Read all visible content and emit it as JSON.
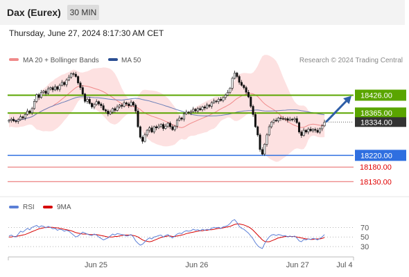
{
  "header": {
    "title": "Dax (Eurex)",
    "interval": "30 MIN"
  },
  "timestamp": "Thursday, June 27, 2024 8:17:30 AM CET",
  "legend": [
    {
      "label": "MA 20 + Bollinger Bands",
      "color": "#f08a8a"
    },
    {
      "label": "MA 50",
      "color": "#2b4f93"
    }
  ],
  "credit": "Research © 2024 Trading Central",
  "rsi_legend": [
    {
      "label": "RSI",
      "color": "#5b7fd6"
    },
    {
      "label": "9MA",
      "color": "#d60000"
    }
  ],
  "chart_data": {
    "type": "candlestick",
    "price_ylim": [
      18088,
      18522
    ],
    "x_range": [
      0,
      500
    ],
    "x_ticks": [
      {
        "x": 127,
        "label": "Jun 25"
      },
      {
        "x": 273,
        "label": "Jun 26"
      },
      {
        "x": 419,
        "label": "Jun 27"
      },
      {
        "x": 487,
        "label": "Jul 4"
      }
    ],
    "levels": [
      {
        "label": "18426.00",
        "value": 18426,
        "kind": "resistance",
        "color": "#5aa500"
      },
      {
        "label": "18365.00",
        "value": 18365,
        "kind": "resistance",
        "color": "#5aa500"
      },
      {
        "label": "18334.00",
        "value": 18334,
        "kind": "last",
        "color": "#333333"
      },
      {
        "label": "18220.00",
        "value": 18220,
        "kind": "pivot",
        "color": "#2f6fe0"
      },
      {
        "label": "18180.00",
        "value": 18180,
        "kind": "support",
        "color": "#e23b3b"
      },
      {
        "label": "18130.00",
        "value": 18130,
        "kind": "support",
        "color": "#e23b3b"
      }
    ],
    "forecast_arrow": {
      "from": [
        460,
        18334
      ],
      "to": [
        497,
        18424
      ]
    },
    "candles": {
      "close": [
        18340,
        18344,
        18338,
        18336,
        18342,
        18352,
        18348,
        18360,
        18372,
        18366,
        18380,
        18405,
        18428,
        18418,
        18436,
        18440,
        18432,
        18448,
        18452,
        18444,
        18455,
        18446,
        18460,
        18470,
        18462,
        18478,
        18488,
        18500,
        18498,
        18490,
        18468,
        18452,
        18430,
        18405,
        18412,
        18398,
        18386,
        18394,
        18404,
        18396,
        18390,
        18376,
        18372,
        18362,
        18368,
        18380,
        18374,
        18386,
        18392,
        18388,
        18400,
        18396,
        18390,
        18402,
        18392,
        18372,
        18318,
        18282,
        18268,
        18290,
        18306,
        18314,
        18300,
        18318,
        18314,
        18320,
        18326,
        18312,
        18320,
        18330,
        18318,
        18308,
        18320,
        18340,
        18348,
        18344,
        18362,
        18368,
        18366,
        18370,
        18378,
        18372,
        18380,
        18376,
        18386,
        18382,
        18392,
        18388,
        18400,
        18406,
        18404,
        18412,
        18408,
        18418,
        18426,
        18436,
        18450,
        18484,
        18502,
        18490,
        18470,
        18460,
        18452,
        18436,
        18420,
        18388,
        18360,
        18318,
        18290,
        18240,
        18224,
        18258,
        18290,
        18318,
        18334,
        18340,
        18338,
        18348,
        18346,
        18344,
        18346,
        18340,
        18344,
        18342,
        18346,
        18332,
        18300,
        18288,
        18306,
        18300,
        18310,
        18304,
        18309,
        18306,
        18299,
        18311,
        18321,
        18334
      ],
      "rsi": [
        52,
        54,
        51,
        50,
        56,
        62,
        60,
        64,
        68,
        65,
        70,
        72,
        74,
        70,
        73,
        72,
        69,
        72,
        70,
        67,
        68,
        64,
        66,
        65,
        62,
        64,
        62,
        58,
        54,
        50,
        52,
        56,
        60,
        58,
        56,
        54,
        53,
        56,
        54,
        50,
        47,
        44,
        46,
        48,
        52,
        56,
        54,
        57,
        56,
        55,
        54,
        52,
        53,
        55,
        50,
        42,
        37,
        33,
        35,
        40,
        45,
        48,
        46,
        50,
        51,
        53,
        54,
        50,
        53,
        55,
        51,
        48,
        52,
        56,
        58,
        57,
        61,
        63,
        62,
        63,
        66,
        64,
        65,
        63,
        66,
        64,
        66,
        65,
        68,
        70,
        69,
        70,
        68,
        71,
        72,
        74,
        78,
        84,
        86,
        80,
        72,
        68,
        66,
        62,
        58,
        52,
        46,
        38,
        32,
        28,
        26,
        36,
        44,
        50,
        54,
        55,
        53,
        55,
        54,
        52,
        53,
        50,
        52,
        50,
        52,
        48,
        42,
        40,
        45,
        44,
        46,
        45,
        47,
        46,
        44,
        47,
        50,
        55
      ],
      "rsi_ma": [
        50,
        50,
        51,
        51,
        52,
        53,
        54,
        55,
        57,
        59,
        61,
        63,
        65,
        67,
        68,
        69,
        70,
        70,
        70,
        70,
        69,
        69,
        68,
        67,
        66,
        65,
        64,
        63,
        61,
        59,
        58,
        57,
        56,
        56,
        56,
        55,
        55,
        55,
        55,
        54,
        53,
        52,
        51,
        50,
        50,
        50,
        51,
        51,
        52,
        53,
        54,
        54,
        54,
        54,
        53,
        52,
        50,
        47,
        44,
        42,
        41,
        40,
        41,
        43,
        45,
        47,
        49,
        50,
        51,
        52,
        52,
        51,
        51,
        52,
        53,
        54,
        55,
        57,
        58,
        59,
        60,
        61,
        62,
        63,
        63,
        64,
        64,
        65,
        65,
        66,
        67,
        68,
        68,
        69,
        70,
        71,
        72,
        74,
        76,
        77,
        77,
        76,
        75,
        73,
        71,
        68,
        64,
        59,
        54,
        49,
        44,
        41,
        40,
        40,
        42,
        44,
        46,
        48,
        49,
        50,
        51,
        51,
        51,
        51,
        51,
        50,
        49,
        48,
        47,
        46,
        46,
        45,
        45,
        46,
        46,
        46,
        47,
        49
      ]
    },
    "rsi_ylim": [
      10,
      92
    ],
    "rsi_ticks": [
      70,
      50,
      30
    ]
  }
}
